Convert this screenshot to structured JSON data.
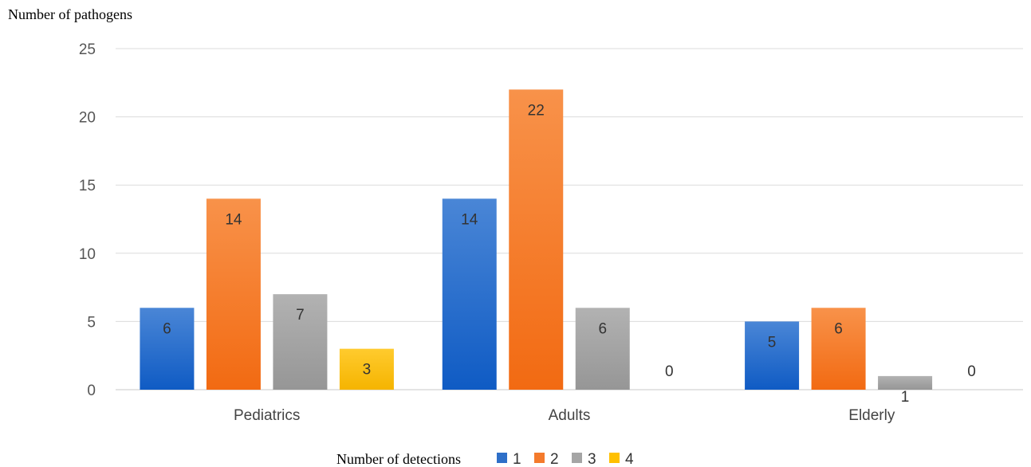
{
  "chart_data": {
    "type": "bar",
    "ylabel": "Number of pathogens",
    "xlabel": "",
    "categories": [
      "Pediatrics",
      "Adults",
      "Elderly"
    ],
    "series": [
      {
        "name": "1",
        "values": [
          6,
          14,
          5
        ],
        "color": "#2E6FC8"
      },
      {
        "name": "2",
        "values": [
          14,
          22,
          6
        ],
        "color": "#F47A2C"
      },
      {
        "name": "3",
        "values": [
          7,
          6,
          1
        ],
        "color": "#A5A5A5"
      },
      {
        "name": "4",
        "values": [
          3,
          0,
          0
        ],
        "color": "#FFC000"
      }
    ],
    "ylim": [
      0,
      25
    ],
    "yticks": [
      0,
      5,
      10,
      15,
      20,
      25
    ],
    "grid": true,
    "legend": {
      "title": "Number of detections",
      "position": "bottom"
    }
  }
}
